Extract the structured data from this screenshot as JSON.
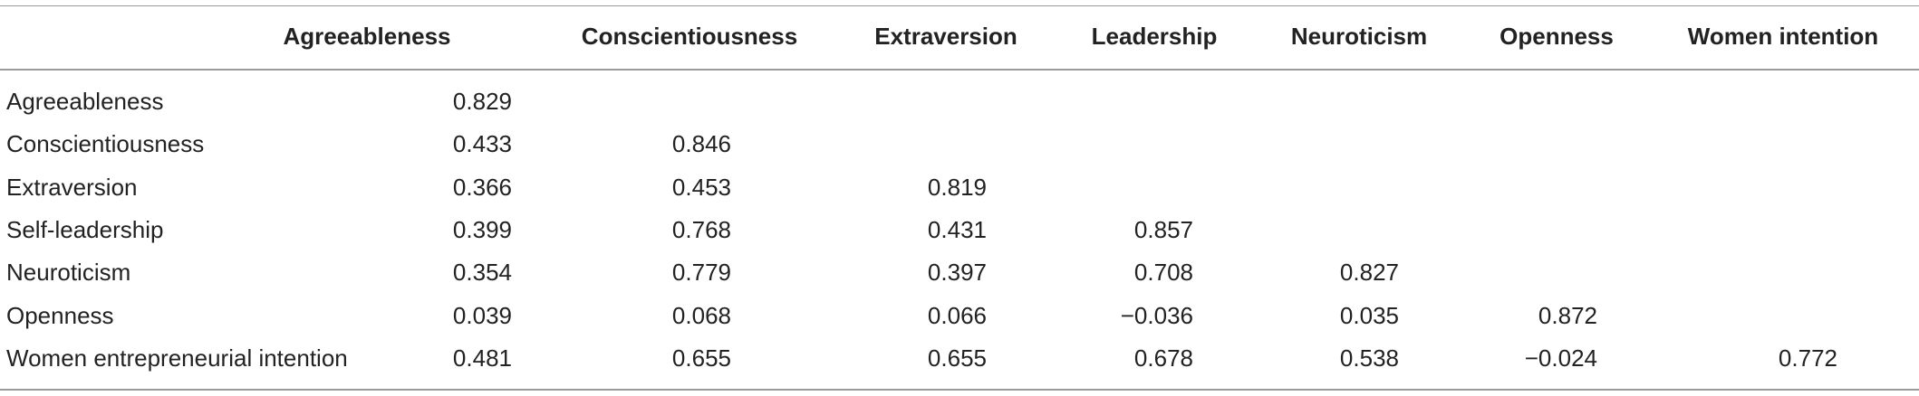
{
  "table": {
    "header": [
      "Agreeableness",
      "Conscientiousness",
      "Extraversion",
      "Leadership",
      "Neuroticism",
      "Openness",
      "Women intention"
    ],
    "rows": [
      {
        "label": "Agreeableness",
        "values": [
          "0.829"
        ]
      },
      {
        "label": "Conscientiousness",
        "values": [
          "0.433",
          "0.846"
        ]
      },
      {
        "label": "Extraversion",
        "values": [
          "0.366",
          "0.453",
          "0.819"
        ]
      },
      {
        "label": "Self-leadership",
        "values": [
          "0.399",
          "0.768",
          "0.431",
          "0.857"
        ]
      },
      {
        "label": "Neuroticism",
        "values": [
          "0.354",
          "0.779",
          "0.397",
          "0.708",
          "0.827"
        ]
      },
      {
        "label": "Openness",
        "values": [
          "0.039",
          "0.068",
          "0.066",
          "−0.036",
          "0.035",
          "0.872"
        ]
      },
      {
        "label": "Women entrepreneurial intention",
        "values": [
          "0.481",
          "0.655",
          "0.655",
          "0.678",
          "0.538",
          "−0.024",
          "0.772"
        ]
      }
    ]
  }
}
